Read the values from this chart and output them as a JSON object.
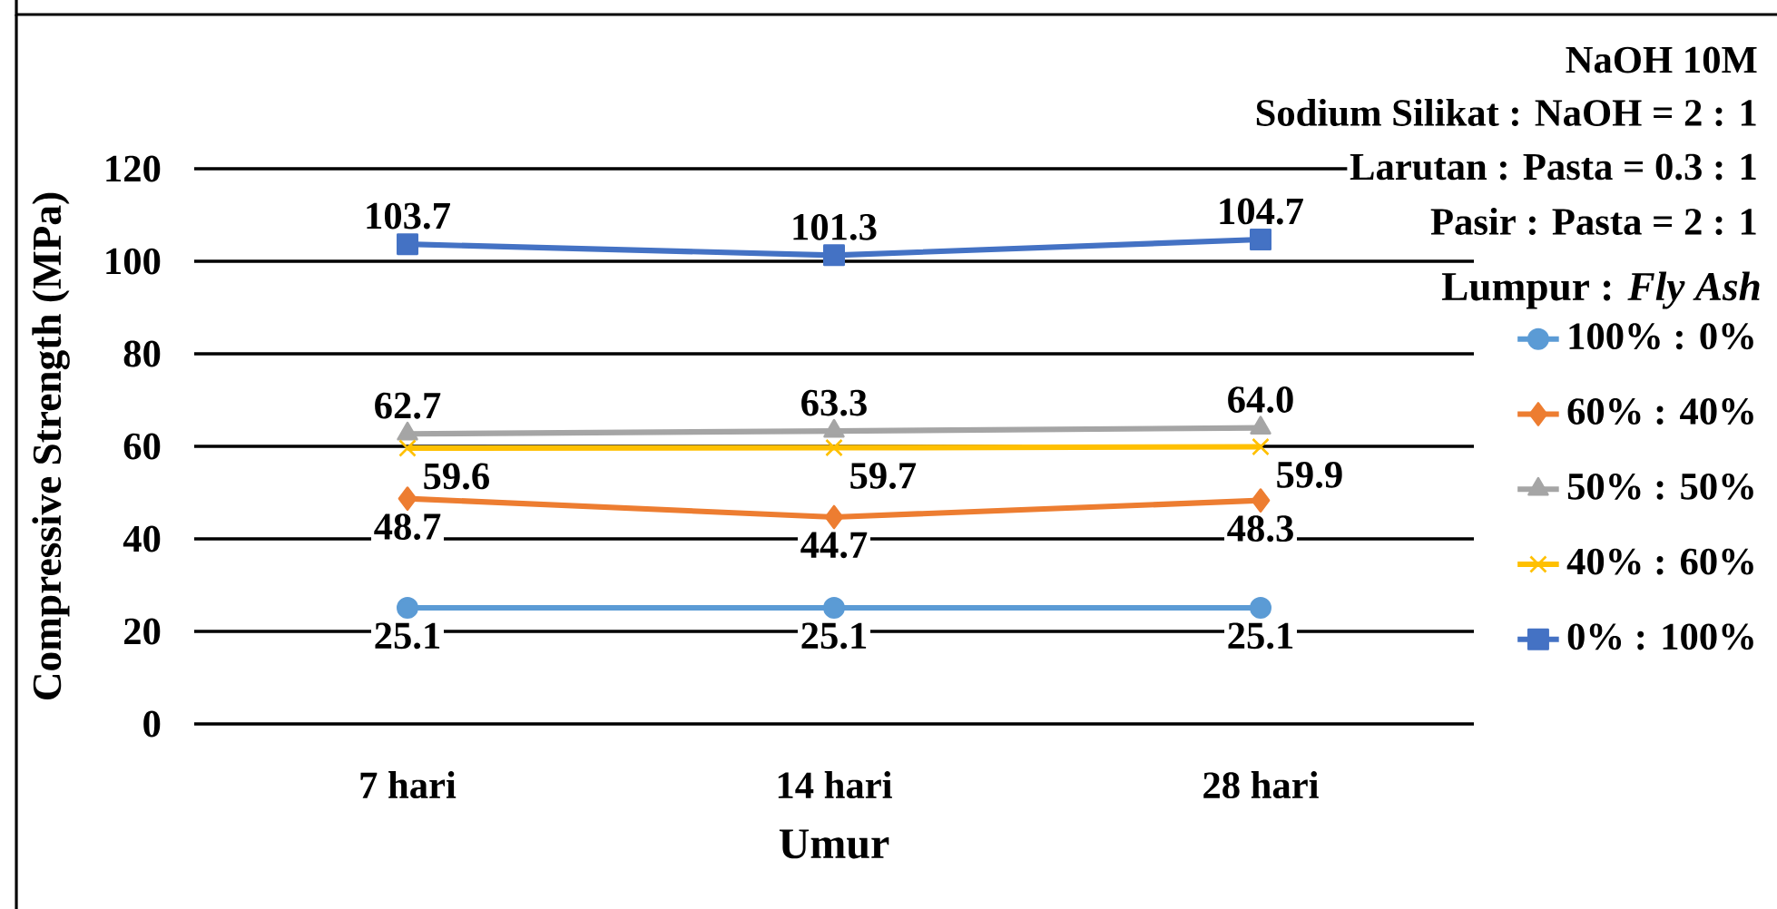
{
  "chart_data": {
    "type": "line",
    "xlabel": "Umur",
    "ylabel": "Compressive Strength (MPa)",
    "legend_title": "Lumpur : *Fly Ash*",
    "annotations": [
      "NaOH 10M",
      "Sodium Silikat : NaOH = 2 : 1",
      "Larutan : Pasta =  0.3 : 1",
      "Pasir : Pasta = 2 : 1"
    ],
    "categories": [
      "7 hari",
      "14 hari",
      "28 hari"
    ],
    "ylim": [
      0,
      120
    ],
    "yticks": [
      0,
      20,
      40,
      60,
      80,
      100,
      120
    ],
    "grid": "y",
    "legend": "right",
    "series": [
      {
        "name": "100% : 0%",
        "color": "#5b9bd5",
        "marker": "circle",
        "values": [
          25.1,
          25.1,
          25.1
        ],
        "value_labels": [
          "25.1",
          "25.1",
          "25.1"
        ]
      },
      {
        "name": "60% : 40%",
        "color": "#ed7d31",
        "marker": "diamond",
        "values": [
          48.7,
          44.7,
          48.3
        ],
        "value_labels": [
          "48.7",
          "44.7",
          "48.3"
        ]
      },
      {
        "name": "50% : 50%",
        "color": "#a5a5a5",
        "marker": "triangle",
        "values": [
          62.7,
          63.3,
          64.0
        ],
        "value_labels": [
          "62.7",
          "63.3",
          "64.0"
        ]
      },
      {
        "name": "40% : 60%",
        "color": "#ffc000",
        "marker": "cross",
        "values": [
          59.6,
          59.7,
          59.9
        ],
        "value_labels": [
          "59.6",
          "59.7",
          "59.9"
        ]
      },
      {
        "name": "0% : 100%",
        "color": "#4472c4",
        "marker": "square",
        "values": [
          103.7,
          101.3,
          104.7
        ],
        "value_labels": [
          "103.7",
          "101.3",
          "104.7"
        ]
      }
    ]
  }
}
